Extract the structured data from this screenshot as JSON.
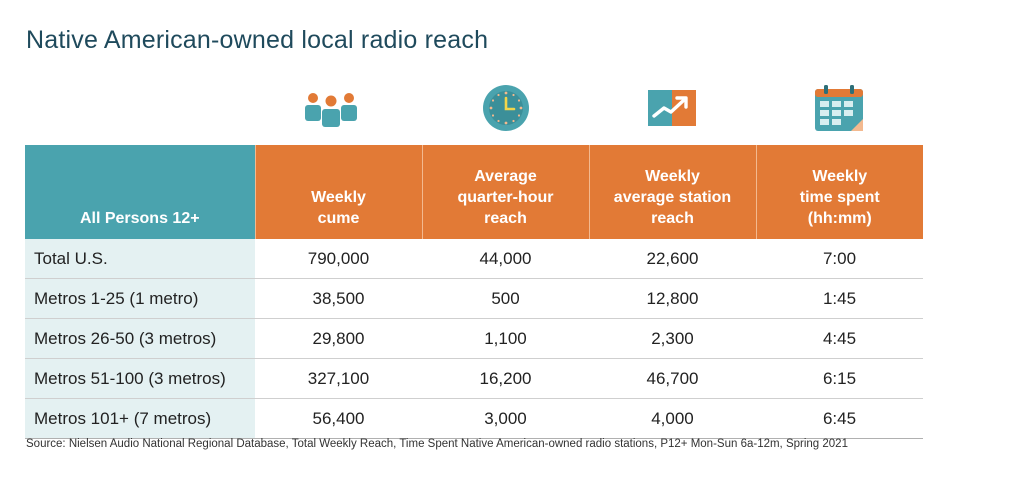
{
  "title": "Native American-owned local radio reach",
  "icons": [
    "people-icon",
    "clock-icon",
    "chart-icon",
    "calendar-icon"
  ],
  "colors": {
    "header_orange": "#e27a36",
    "header_teal": "#4aa3ae",
    "row_label_bg": "#e4f1f2",
    "title": "#1f4a5c"
  },
  "chart_data": {
    "type": "table",
    "title": "Native American-owned local radio reach",
    "columns": [
      "All Persons 12+",
      "Weekly cume",
      "Average quarter-hour reach",
      "Weekly average station reach",
      "Weekly time spent (hh:mm)"
    ],
    "header_lines": [
      [
        "All Persons 12+"
      ],
      [
        "Weekly",
        "cume"
      ],
      [
        "Average",
        "quarter-hour",
        "reach"
      ],
      [
        "Weekly",
        "average station",
        "reach"
      ],
      [
        "Weekly",
        "time spent",
        "(hh:mm)"
      ]
    ],
    "rows": [
      [
        "Total U.S.",
        "790,000",
        "44,000",
        "22,600",
        "7:00"
      ],
      [
        "Metros 1-25 (1 metro)",
        "38,500",
        "500",
        "12,800",
        "1:45"
      ],
      [
        "Metros 26-50 (3 metros)",
        "29,800",
        "1,100",
        "2,300",
        "4:45"
      ],
      [
        "Metros 51-100 (3 metros)",
        "327,100",
        "16,200",
        "46,700",
        "6:15"
      ],
      [
        "Metros 101+ (7 metros)",
        "56,400",
        "3,000",
        "4,000",
        "6:45"
      ]
    ]
  },
  "source": "Source: Nielsen Audio National Regional Database, Total Weekly Reach, Time Spent Native American-owned radio stations, P12+ Mon-Sun 6a-12m, Spring 2021"
}
